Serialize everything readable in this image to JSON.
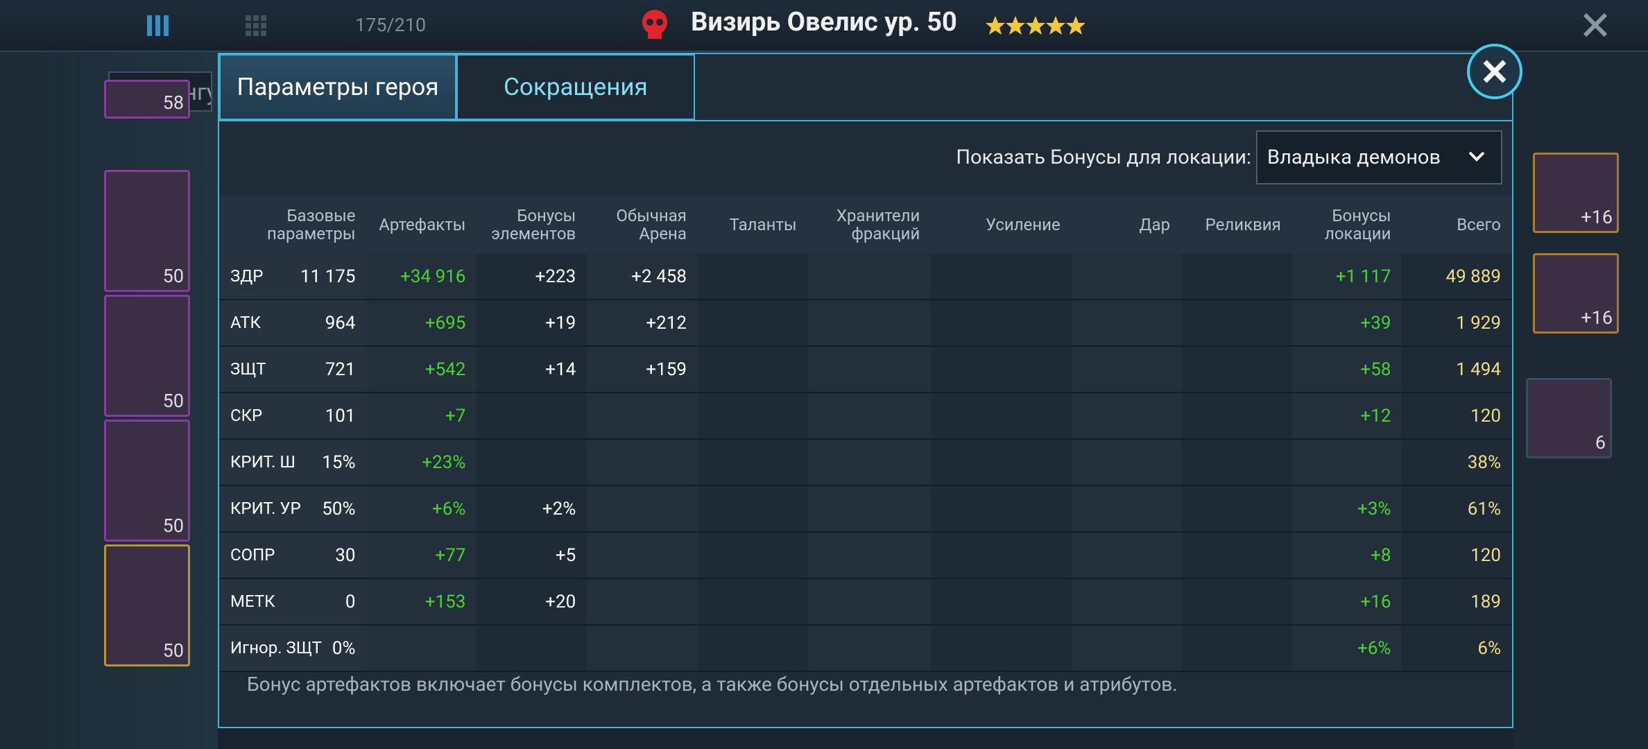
{
  "header": {
    "title": "Визирь Овелис ур. 50",
    "count": "175/210"
  },
  "sidebar": {
    "sort": "По рангу",
    "levels": [
      "58",
      "50",
      "50",
      "50",
      "50"
    ],
    "right_levels": [
      "+16",
      "+16",
      "6"
    ]
  },
  "tabs": [
    "Параметры героя",
    "Сокращения"
  ],
  "location_label": "Показать Бонусы для локации:",
  "location_value": "Владыка демонов",
  "table": {
    "columns": [
      "Базовые параметры",
      "Артефакты",
      "Бонусы элементов",
      "Обычная Арена",
      "Таланты",
      "Хранители фракций",
      "Усиление",
      "Дар",
      "Реликвия",
      "Бонусы локации",
      "Всего"
    ],
    "rows": [
      [
        "ЗДР",
        "11 175",
        "+34 916",
        "+223",
        "+2 458",
        null,
        null,
        null,
        null,
        null,
        "+1 117",
        "49 889"
      ],
      [
        "АТК",
        "964",
        "+695",
        "+19",
        "+212",
        null,
        null,
        null,
        null,
        null,
        "+39",
        "1 929"
      ],
      [
        "ЗЩТ",
        "721",
        "+542",
        "+14",
        "+159",
        null,
        null,
        null,
        null,
        null,
        "+58",
        "1 494"
      ],
      [
        "СКР",
        "101",
        "+7",
        null,
        null,
        null,
        null,
        null,
        null,
        null,
        "+12",
        "120"
      ],
      [
        "КРИТ. Ш",
        "15%",
        "+23%",
        null,
        null,
        null,
        null,
        null,
        null,
        null,
        null,
        "38%"
      ],
      [
        "КРИТ. УР",
        "50%",
        "+6%",
        "+2%",
        null,
        null,
        null,
        null,
        null,
        null,
        "+3%",
        "61%"
      ],
      [
        "СОПР",
        "30",
        "+77",
        "+5",
        null,
        null,
        null,
        null,
        null,
        null,
        "+8",
        "120"
      ],
      [
        "МЕТК",
        "0",
        "+153",
        "+20",
        null,
        null,
        null,
        null,
        null,
        null,
        "+16",
        "189"
      ],
      [
        "Игнор. ЗЩТ",
        "0%",
        null,
        null,
        null,
        null,
        null,
        null,
        null,
        null,
        "+6%",
        "6%"
      ]
    ]
  },
  "note": "Бонус артефактов включает бонусы комплектов, а также бонусы отдельных артефактов и атрибутов."
}
